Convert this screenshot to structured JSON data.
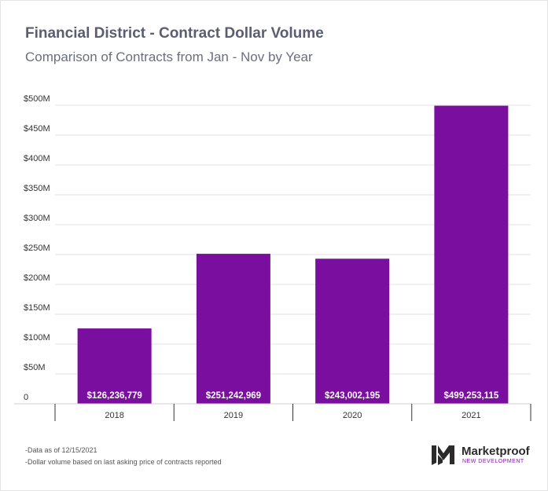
{
  "chart_data": {
    "type": "bar",
    "title": "Financial District - Contract Dollar Volume",
    "subtitle": "Comparison of Contracts from Jan - Nov by Year",
    "categories": [
      "2018",
      "2019",
      "2020",
      "2021"
    ],
    "values": [
      126236779,
      251242969,
      243002195,
      499253115
    ],
    "data_labels": [
      "$126,236,779",
      "$251,242,969",
      "$243,002,195",
      "$499,253,115"
    ],
    "ylim": [
      0,
      500000000
    ],
    "yticks": [
      0,
      50000000,
      100000000,
      150000000,
      200000000,
      250000000,
      300000000,
      350000000,
      400000000,
      450000000,
      500000000
    ],
    "ytick_labels": [
      "0",
      "$50M",
      "$100M",
      "$150M",
      "$200M",
      "$250M",
      "$300M",
      "$350M",
      "$400M",
      "$450M",
      "$500M"
    ],
    "grid": true,
    "bar_color": "#7a0f9f",
    "xlabel": "",
    "ylabel": ""
  },
  "notes": [
    "-Data as of 12/15/2021",
    "-Dollar volume based on last asking price of contracts reported"
  ],
  "logo": {
    "name": "Marketproof",
    "tagline": "NEW DEVELOPMENT",
    "icon": "marketproof-logo-icon"
  }
}
